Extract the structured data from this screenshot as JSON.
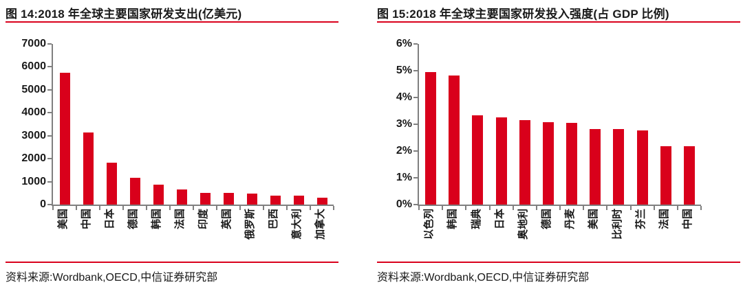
{
  "colors": {
    "bar": "#d9001b",
    "rule": "#d9001b",
    "axis": "#7f7f7f",
    "text": "#1a1a1a"
  },
  "figures": [
    {
      "title": "图 14:2018 年全球主要国家研发支出(亿美元)",
      "source": "资料来源:Wordbank,OECD,中信证券研究部"
    },
    {
      "title": "图 15:2018 年全球主要国家研发投入强度(占 GDP 比例)",
      "source": "资料来源:Wordbank,OECD,中信证券研究部"
    }
  ],
  "chart_data": [
    {
      "type": "bar",
      "title": "图 14:2018 年全球主要国家研发支出(亿美元)",
      "categories": [
        "美国",
        "中国",
        "日本",
        "德国",
        "韩国",
        "法国",
        "印度",
        "英国",
        "俄罗斯",
        "巴西",
        "意大利",
        "加拿大"
      ],
      "values": [
        5730,
        3150,
        1830,
        1160,
        870,
        650,
        500,
        495,
        470,
        390,
        380,
        310
      ],
      "xlabel": "",
      "ylabel": "亿美元",
      "ylim": [
        0,
        7000
      ],
      "yticks": [
        0,
        1000,
        2000,
        3000,
        4000,
        5000,
        6000,
        7000
      ],
      "ytick_labels": [
        "0",
        "1000",
        "2000",
        "3000",
        "4000",
        "5000",
        "6000",
        "7000"
      ],
      "grid": false,
      "legend": "none",
      "bar_color": "#d9001b"
    },
    {
      "type": "bar",
      "title": "图 15:2018 年全球主要国家研发投入强度(占 GDP 比例)",
      "categories": [
        "以色列",
        "韩国",
        "瑞典",
        "日本",
        "奥地利",
        "德国",
        "丹麦",
        "美国",
        "比利时",
        "芬兰",
        "法国",
        "中国"
      ],
      "values": [
        4.94,
        4.81,
        3.33,
        3.26,
        3.16,
        3.09,
        3.05,
        2.83,
        2.81,
        2.77,
        2.19,
        2.18
      ],
      "xlabel": "",
      "ylabel": "占GDP比例",
      "ylim": [
        0,
        6
      ],
      "yticks": [
        0,
        1,
        2,
        3,
        4,
        5,
        6
      ],
      "ytick_labels": [
        "0%",
        "1%",
        "2%",
        "3%",
        "4%",
        "5%",
        "6%"
      ],
      "grid": false,
      "legend": "none",
      "bar_color": "#d9001b"
    }
  ]
}
